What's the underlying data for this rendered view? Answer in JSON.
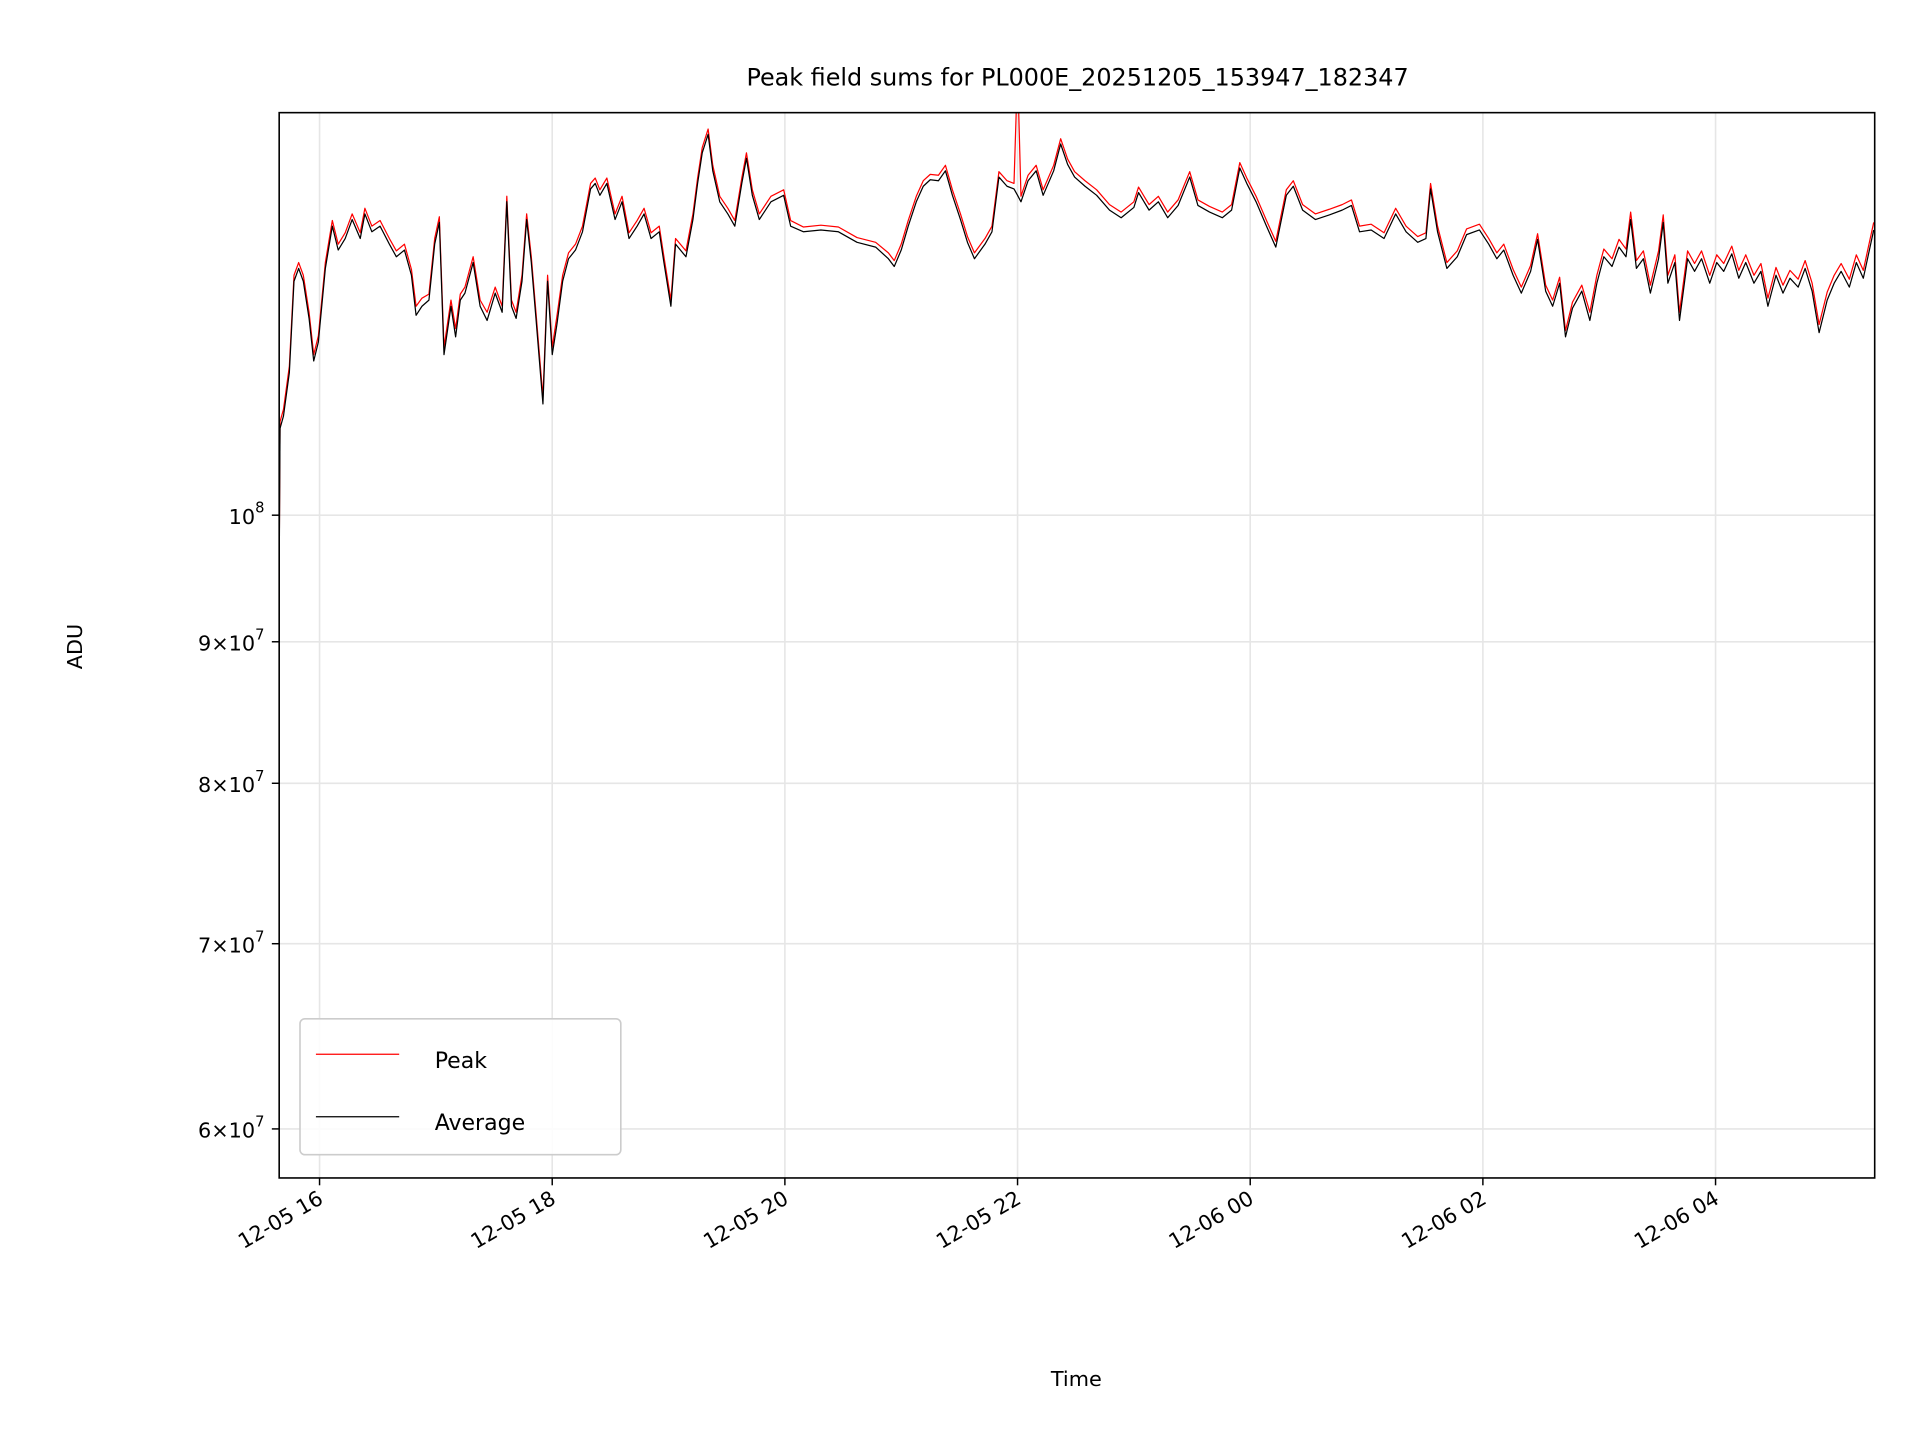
{
  "chart_data": {
    "type": "line",
    "title": "Peak field sums for PL000E_20251205_153947_182347",
    "xlabel": "Time",
    "ylabel": "ADU",
    "yscale": "log",
    "grid": true,
    "legend_placement": "lower-left",
    "x_unit": "hours since 12-05 00:00",
    "xlim": [
      15.653,
      29.368
    ],
    "ylim": [
      57600000,
      139800000
    ],
    "value_scale": 100000000,
    "x_ticks": [
      {
        "value": 16,
        "label": "12-05 16"
      },
      {
        "value": 18,
        "label": "12-05 18"
      },
      {
        "value": 20,
        "label": "12-05 20"
      },
      {
        "value": 22,
        "label": "12-05 22"
      },
      {
        "value": 24,
        "label": "12-06 00"
      },
      {
        "value": 26,
        "label": "12-06 02"
      },
      {
        "value": 28,
        "label": "12-06 04"
      }
    ],
    "y_ticks": [
      {
        "value": 100000000,
        "mantissa": "",
        "base": "10",
        "exp": "8"
      },
      {
        "value": 90000000,
        "mantissa": "9",
        "base": "10",
        "exp": "7"
      },
      {
        "value": 80000000,
        "mantissa": "8",
        "base": "10",
        "exp": "7"
      },
      {
        "value": 70000000,
        "mantissa": "7",
        "base": "10",
        "exp": "7"
      },
      {
        "value": 60000000,
        "mantissa": "6",
        "base": "10",
        "exp": "7"
      }
    ],
    "times_symbol": "×",
    "series": [
      {
        "name": "Peak",
        "column": 2,
        "color": "#ff0000"
      },
      {
        "name": "Average",
        "column": 1,
        "color": "#000000"
      }
    ],
    "points_columns": [
      "time_hours",
      "average_x1e8",
      "peak_x1e8"
    ],
    "points": [
      [
        15.65,
        0.904,
        0.91
      ],
      [
        15.66,
        1.075,
        1.081
      ],
      [
        15.69,
        1.086,
        1.092
      ],
      [
        15.74,
        1.126,
        1.132
      ],
      [
        15.78,
        1.215,
        1.221
      ],
      [
        15.82,
        1.228,
        1.234
      ],
      [
        15.86,
        1.215,
        1.221
      ],
      [
        15.91,
        1.178,
        1.184
      ],
      [
        15.95,
        1.137,
        1.143
      ],
      [
        15.99,
        1.155,
        1.161
      ],
      [
        16.05,
        1.228,
        1.234
      ],
      [
        16.11,
        1.272,
        1.278
      ],
      [
        16.16,
        1.247,
        1.253
      ],
      [
        16.22,
        1.259,
        1.265
      ],
      [
        16.28,
        1.279,
        1.285
      ],
      [
        16.35,
        1.259,
        1.265
      ],
      [
        16.39,
        1.285,
        1.291
      ],
      [
        16.45,
        1.266,
        1.272
      ],
      [
        16.52,
        1.272,
        1.278
      ],
      [
        16.6,
        1.253,
        1.259
      ],
      [
        16.66,
        1.24,
        1.246
      ],
      [
        16.73,
        1.247,
        1.253
      ],
      [
        16.79,
        1.221,
        1.227
      ],
      [
        16.83,
        1.181,
        1.19
      ],
      [
        16.88,
        1.19,
        1.198
      ],
      [
        16.94,
        1.196,
        1.202
      ],
      [
        16.99,
        1.253,
        1.259
      ],
      [
        17.03,
        1.276,
        1.282
      ],
      [
        17.07,
        1.143,
        1.15
      ],
      [
        17.13,
        1.19,
        1.196
      ],
      [
        17.17,
        1.16,
        1.168
      ],
      [
        17.21,
        1.196,
        1.202
      ],
      [
        17.25,
        1.203,
        1.209
      ],
      [
        17.32,
        1.234,
        1.24
      ],
      [
        17.38,
        1.19,
        1.196
      ],
      [
        17.44,
        1.176,
        1.184
      ],
      [
        17.51,
        1.203,
        1.209
      ],
      [
        17.57,
        1.184,
        1.19
      ],
      [
        17.61,
        1.298,
        1.304
      ],
      [
        17.65,
        1.19,
        1.196
      ],
      [
        17.69,
        1.178,
        1.184
      ],
      [
        17.74,
        1.215,
        1.221
      ],
      [
        17.78,
        1.279,
        1.285
      ],
      [
        17.82,
        1.234,
        1.24
      ],
      [
        17.86,
        1.178,
        1.184
      ],
      [
        17.92,
        1.097,
        1.103
      ],
      [
        17.96,
        1.215,
        1.221
      ],
      [
        18.0,
        1.143,
        1.15
      ],
      [
        18.04,
        1.172,
        1.18
      ],
      [
        18.09,
        1.215,
        1.221
      ],
      [
        18.14,
        1.238,
        1.244
      ],
      [
        18.2,
        1.247,
        1.253
      ],
      [
        18.26,
        1.266,
        1.272
      ],
      [
        18.33,
        1.312,
        1.318
      ],
      [
        18.37,
        1.318,
        1.324
      ],
      [
        18.41,
        1.305,
        1.311
      ],
      [
        18.47,
        1.318,
        1.324
      ],
      [
        18.54,
        1.279,
        1.285
      ],
      [
        18.6,
        1.298,
        1.304
      ],
      [
        18.66,
        1.259,
        1.265
      ],
      [
        18.73,
        1.272,
        1.278
      ],
      [
        18.79,
        1.285,
        1.291
      ],
      [
        18.85,
        1.259,
        1.265
      ],
      [
        18.92,
        1.266,
        1.272
      ],
      [
        18.96,
        1.234,
        1.24
      ],
      [
        19.02,
        1.19,
        1.196
      ],
      [
        19.06,
        1.253,
        1.259
      ],
      [
        19.15,
        1.24,
        1.246
      ],
      [
        19.21,
        1.279,
        1.285
      ],
      [
        19.25,
        1.318,
        1.324
      ],
      [
        19.29,
        1.352,
        1.358
      ],
      [
        19.34,
        1.373,
        1.379
      ],
      [
        19.38,
        1.332,
        1.338
      ],
      [
        19.44,
        1.298,
        1.304
      ],
      [
        19.51,
        1.285,
        1.291
      ],
      [
        19.57,
        1.272,
        1.278
      ],
      [
        19.63,
        1.318,
        1.324
      ],
      [
        19.67,
        1.346,
        1.352
      ],
      [
        19.72,
        1.305,
        1.311
      ],
      [
        19.78,
        1.279,
        1.285
      ],
      [
        19.88,
        1.298,
        1.304
      ],
      [
        19.99,
        1.305,
        1.311
      ],
      [
        20.05,
        1.272,
        1.278
      ],
      [
        20.16,
        1.266,
        1.271
      ],
      [
        20.31,
        1.268,
        1.273
      ],
      [
        20.46,
        1.266,
        1.271
      ],
      [
        20.62,
        1.255,
        1.26
      ],
      [
        20.78,
        1.25,
        1.255
      ],
      [
        20.89,
        1.238,
        1.244
      ],
      [
        20.94,
        1.23,
        1.236
      ],
      [
        21.0,
        1.247,
        1.253
      ],
      [
        21.06,
        1.272,
        1.278
      ],
      [
        21.13,
        1.298,
        1.304
      ],
      [
        21.19,
        1.315,
        1.321
      ],
      [
        21.25,
        1.322,
        1.328
      ],
      [
        21.32,
        1.321,
        1.327
      ],
      [
        21.38,
        1.332,
        1.338
      ],
      [
        21.44,
        1.305,
        1.311
      ],
      [
        21.51,
        1.279,
        1.285
      ],
      [
        21.57,
        1.255,
        1.261
      ],
      [
        21.63,
        1.238,
        1.244
      ],
      [
        21.72,
        1.253,
        1.259
      ],
      [
        21.78,
        1.266,
        1.272
      ],
      [
        21.84,
        1.325,
        1.331
      ],
      [
        21.91,
        1.315,
        1.321
      ],
      [
        21.97,
        1.312,
        1.318
      ],
      [
        22.0,
        1.305,
        1.45
      ],
      [
        22.03,
        1.298,
        1.304
      ],
      [
        22.09,
        1.321,
        1.327
      ],
      [
        22.16,
        1.332,
        1.338
      ],
      [
        22.22,
        1.305,
        1.311
      ],
      [
        22.31,
        1.332,
        1.338
      ],
      [
        22.37,
        1.362,
        1.368
      ],
      [
        22.43,
        1.339,
        1.345
      ],
      [
        22.49,
        1.325,
        1.331
      ],
      [
        22.58,
        1.315,
        1.321
      ],
      [
        22.68,
        1.305,
        1.311
      ],
      [
        22.79,
        1.289,
        1.295
      ],
      [
        22.89,
        1.281,
        1.287
      ],
      [
        23.0,
        1.292,
        1.298
      ],
      [
        23.04,
        1.308,
        1.314
      ],
      [
        23.13,
        1.289,
        1.295
      ],
      [
        23.21,
        1.298,
        1.304
      ],
      [
        23.29,
        1.281,
        1.287
      ],
      [
        23.38,
        1.294,
        1.3
      ],
      [
        23.48,
        1.325,
        1.331
      ],
      [
        23.55,
        1.294,
        1.3
      ],
      [
        23.65,
        1.287,
        1.293
      ],
      [
        23.76,
        1.281,
        1.287
      ],
      [
        23.84,
        1.289,
        1.295
      ],
      [
        23.91,
        1.335,
        1.341
      ],
      [
        23.97,
        1.318,
        1.324
      ],
      [
        24.05,
        1.298,
        1.304
      ],
      [
        24.14,
        1.272,
        1.278
      ],
      [
        24.22,
        1.25,
        1.256
      ],
      [
        24.31,
        1.305,
        1.311
      ],
      [
        24.37,
        1.315,
        1.321
      ],
      [
        24.45,
        1.289,
        1.295
      ],
      [
        24.56,
        1.279,
        1.285
      ],
      [
        24.68,
        1.284,
        1.29
      ],
      [
        24.79,
        1.289,
        1.295
      ],
      [
        24.87,
        1.294,
        1.3
      ],
      [
        24.94,
        1.266,
        1.272
      ],
      [
        25.04,
        1.268,
        1.274
      ],
      [
        25.15,
        1.259,
        1.265
      ],
      [
        25.25,
        1.285,
        1.291
      ],
      [
        25.34,
        1.266,
        1.272
      ],
      [
        25.44,
        1.255,
        1.261
      ],
      [
        25.51,
        1.259,
        1.265
      ],
      [
        25.55,
        1.312,
        1.318
      ],
      [
        25.61,
        1.266,
        1.272
      ],
      [
        25.69,
        1.228,
        1.234
      ],
      [
        25.78,
        1.24,
        1.246
      ],
      [
        25.86,
        1.263,
        1.269
      ],
      [
        25.97,
        1.268,
        1.274
      ],
      [
        26.05,
        1.253,
        1.259
      ],
      [
        26.12,
        1.238,
        1.244
      ],
      [
        26.18,
        1.247,
        1.253
      ],
      [
        26.26,
        1.221,
        1.227
      ],
      [
        26.33,
        1.203,
        1.209
      ],
      [
        26.41,
        1.225,
        1.231
      ],
      [
        26.47,
        1.258,
        1.264
      ],
      [
        26.54,
        1.205,
        1.211
      ],
      [
        26.6,
        1.19,
        1.196
      ],
      [
        26.66,
        1.213,
        1.219
      ],
      [
        26.71,
        1.16,
        1.166
      ],
      [
        26.77,
        1.188,
        1.194
      ],
      [
        26.85,
        1.205,
        1.211
      ],
      [
        26.92,
        1.176,
        1.184
      ],
      [
        26.98,
        1.213,
        1.221
      ],
      [
        27.04,
        1.24,
        1.248
      ],
      [
        27.11,
        1.23,
        1.238
      ],
      [
        27.17,
        1.25,
        1.258
      ],
      [
        27.23,
        1.24,
        1.248
      ],
      [
        27.27,
        1.279,
        1.287
      ],
      [
        27.32,
        1.228,
        1.236
      ],
      [
        27.38,
        1.238,
        1.246
      ],
      [
        27.44,
        1.203,
        1.211
      ],
      [
        27.51,
        1.238,
        1.246
      ],
      [
        27.55,
        1.276,
        1.284
      ],
      [
        27.59,
        1.213,
        1.221
      ],
      [
        27.65,
        1.234,
        1.242
      ],
      [
        27.69,
        1.176,
        1.184
      ],
      [
        27.76,
        1.238,
        1.246
      ],
      [
        27.82,
        1.225,
        1.233
      ],
      [
        27.88,
        1.238,
        1.246
      ],
      [
        27.95,
        1.213,
        1.221
      ],
      [
        28.01,
        1.234,
        1.242
      ],
      [
        28.07,
        1.225,
        1.233
      ],
      [
        28.14,
        1.243,
        1.251
      ],
      [
        28.2,
        1.218,
        1.226
      ],
      [
        28.26,
        1.234,
        1.242
      ],
      [
        28.33,
        1.213,
        1.221
      ],
      [
        28.39,
        1.225,
        1.233
      ],
      [
        28.45,
        1.19,
        1.198
      ],
      [
        28.52,
        1.221,
        1.229
      ],
      [
        28.58,
        1.203,
        1.211
      ],
      [
        28.64,
        1.218,
        1.226
      ],
      [
        28.71,
        1.209,
        1.217
      ],
      [
        28.77,
        1.228,
        1.236
      ],
      [
        28.83,
        1.205,
        1.213
      ],
      [
        28.89,
        1.164,
        1.172
      ],
      [
        28.96,
        1.196,
        1.204
      ],
      [
        29.02,
        1.213,
        1.221
      ],
      [
        29.08,
        1.225,
        1.233
      ],
      [
        29.15,
        1.209,
        1.217
      ],
      [
        29.21,
        1.234,
        1.242
      ],
      [
        29.27,
        1.218,
        1.226
      ],
      [
        29.36,
        1.268,
        1.276
      ]
    ]
  }
}
